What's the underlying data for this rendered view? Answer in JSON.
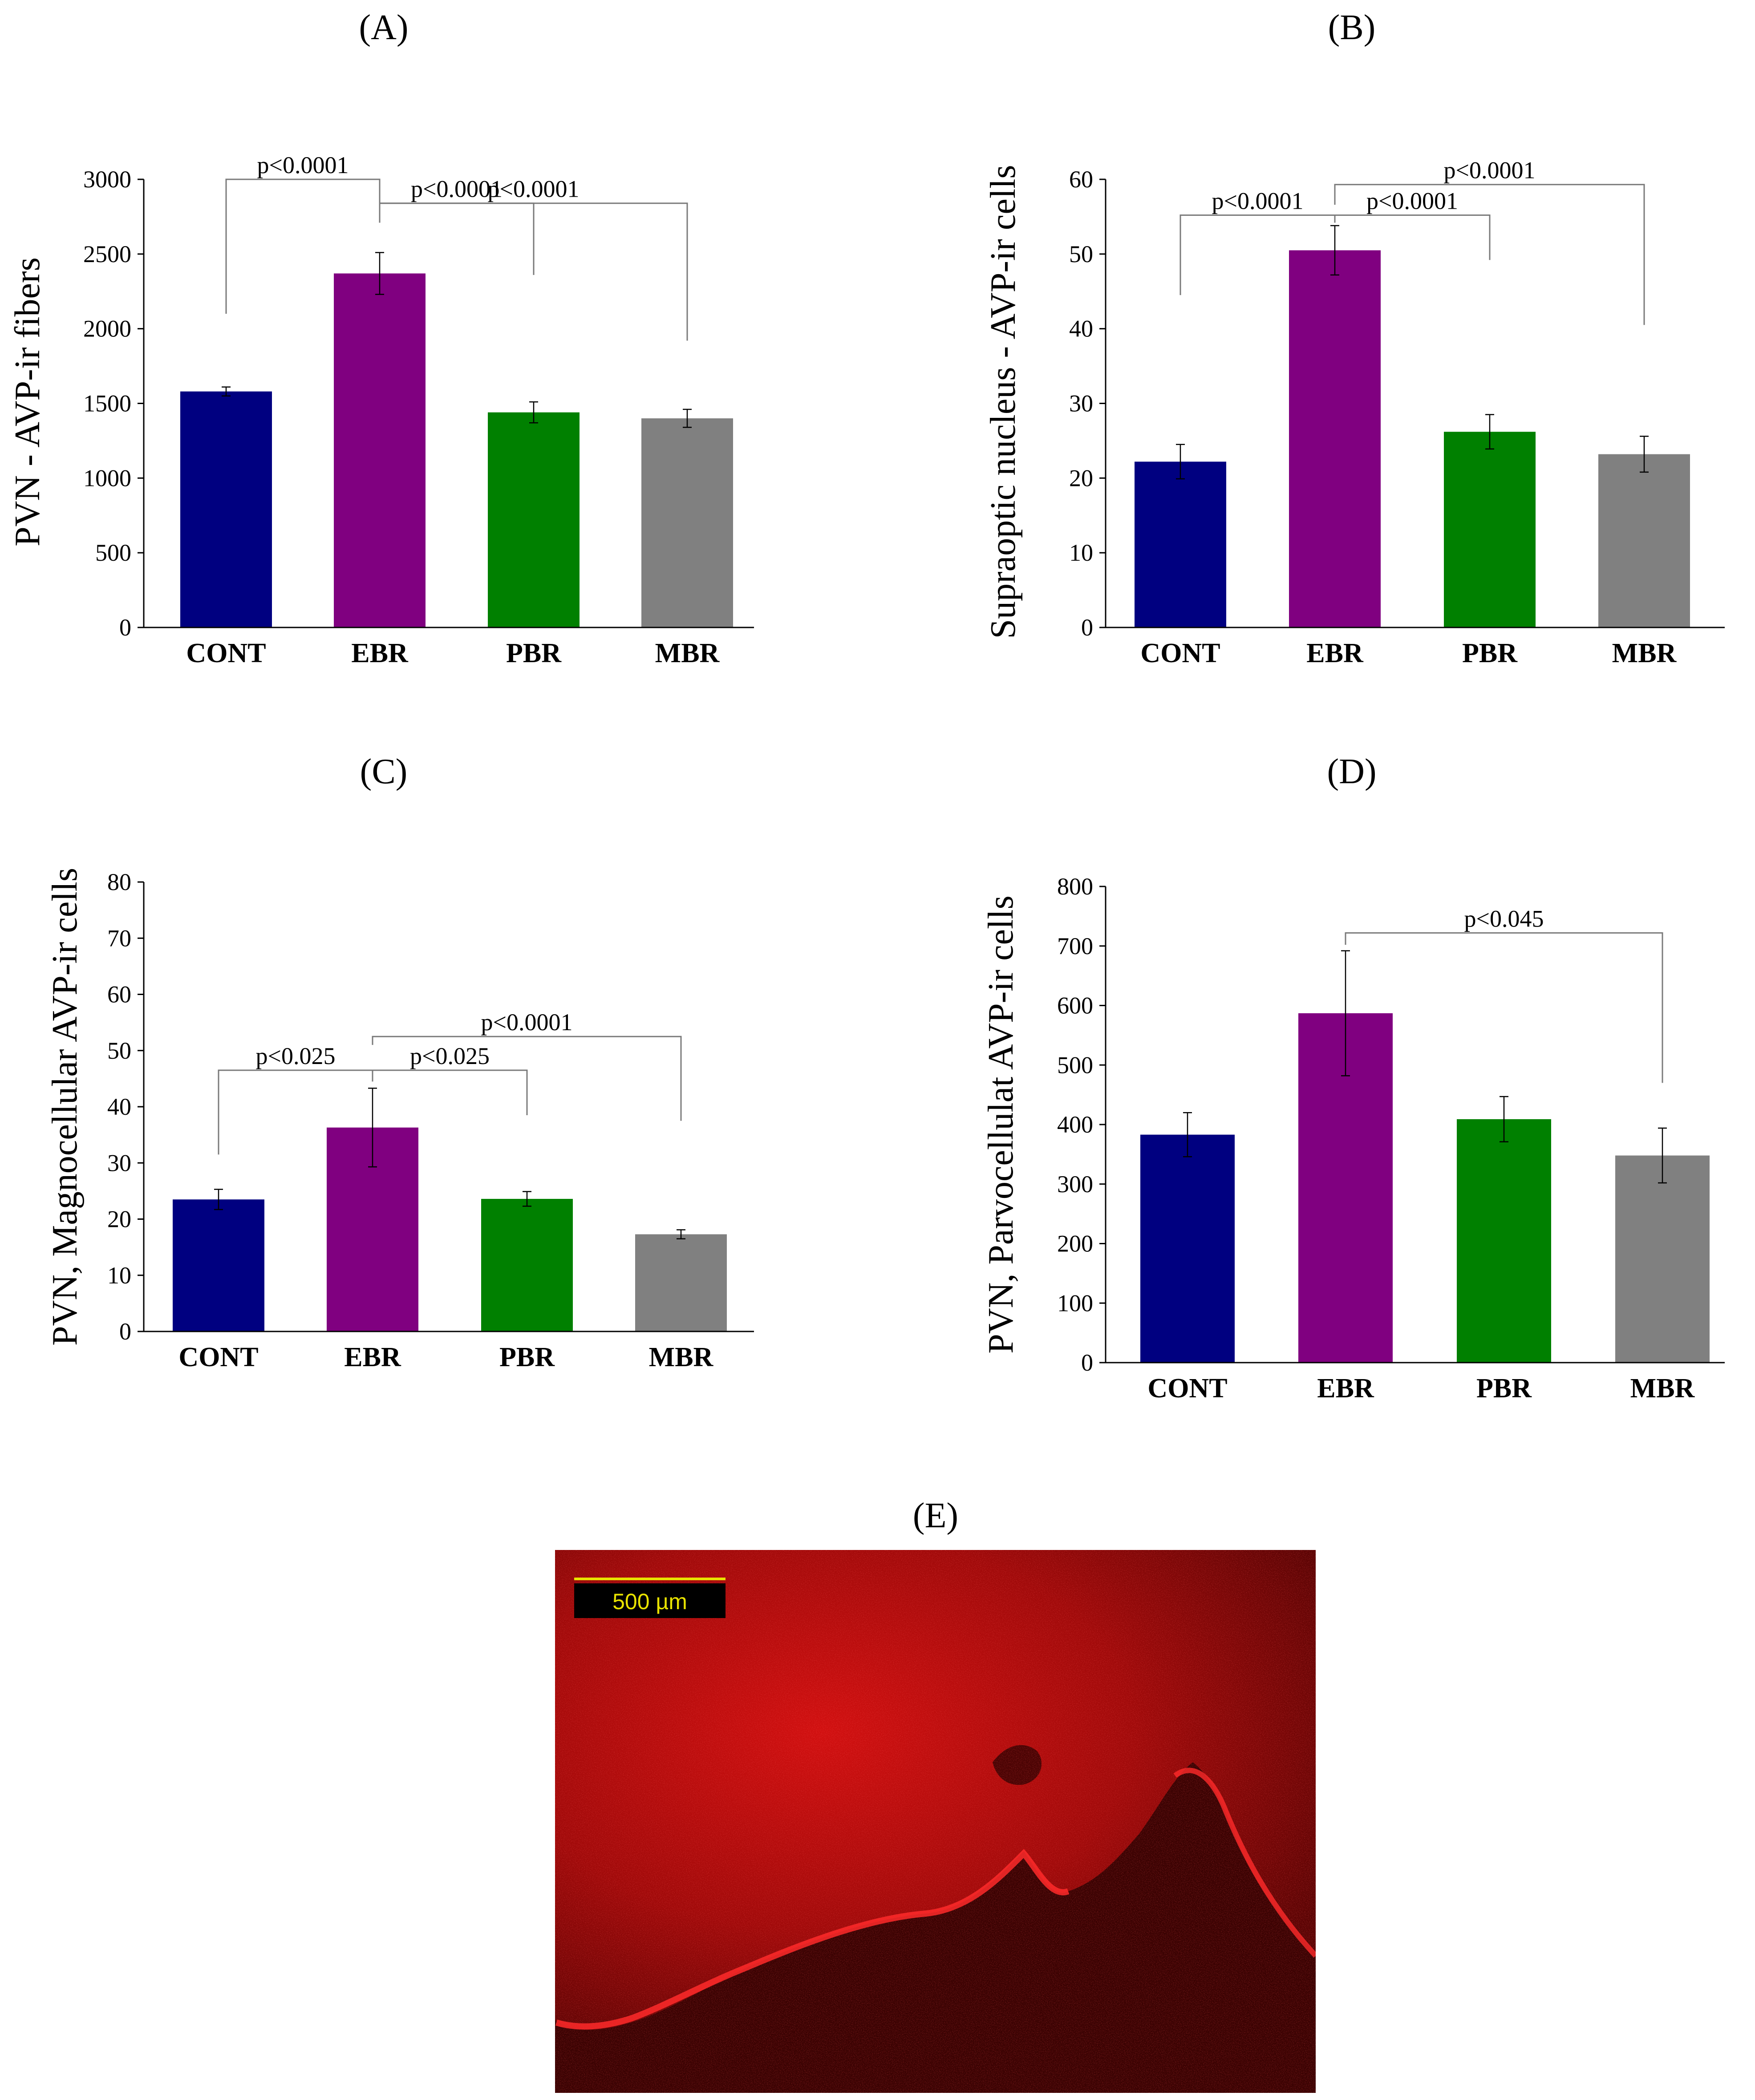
{
  "colors": {
    "CONT": "#000080",
    "EBR": "#800080",
    "PBR": "#008000",
    "MBR": "#808080",
    "scale_bar": "#e8e200"
  },
  "chart_data": [
    {
      "id": "A",
      "panel_label": "(A)",
      "type": "bar",
      "ylabel": "PVN -  AVP-ir fibers",
      "ylim": [
        0,
        3000
      ],
      "yticks": [
        0,
        500,
        1000,
        1500,
        2000,
        2500,
        3000
      ],
      "categories": [
        "CONT",
        "EBR",
        "PBR",
        "MBR"
      ],
      "values": [
        1580,
        2370,
        1440,
        1400
      ],
      "errors": [
        30,
        140,
        70,
        60
      ],
      "significance": [
        {
          "from": 0,
          "to": 1,
          "label": "p<0.0001",
          "level": 3000,
          "base_from": 2100,
          "base_to": 2710
        },
        {
          "from": 1,
          "to": 2,
          "label": "p<0.0001",
          "level": 2840,
          "base_from": 2710,
          "base_to": 2360
        },
        {
          "from": 1,
          "to": 3,
          "label": "p<0.0001",
          "level": 2840,
          "base_from": 2850,
          "base_to": 1920,
          "upper": 2850
        }
      ]
    },
    {
      "id": "B",
      "panel_label": "(B)",
      "type": "bar",
      "ylabel": "Supraoptic nucleus -  AVP-ir cells",
      "ylim": [
        0,
        60
      ],
      "yticks": [
        0,
        10,
        20,
        30,
        40,
        50,
        60
      ],
      "categories": [
        "CONT",
        "EBR",
        "PBR",
        "MBR"
      ],
      "values": [
        22.2,
        50.5,
        26.2,
        23.2
      ],
      "errors": [
        2.3,
        3.3,
        2.3,
        2.4
      ],
      "significance": [
        {
          "from": 0,
          "to": 1,
          "label": "p<0.0001",
          "level": 55.2,
          "base_from": 44.5,
          "base_to": 54.2
        },
        {
          "from": 1,
          "to": 2,
          "label": "p<0.0001",
          "level": 55.2,
          "base_from": 54.2,
          "base_to": 49.2
        },
        {
          "from": 1,
          "to": 3,
          "label": "p<0.0001",
          "level": 59.3,
          "base_from": 56.6,
          "base_to": 40.5,
          "upper": 59.3
        }
      ]
    },
    {
      "id": "C",
      "panel_label": "(C)",
      "type": "bar",
      "ylabel": "PVN, Magnocellular AVP-ir cells",
      "ylim": [
        0,
        80
      ],
      "yticks": [
        0,
        10,
        20,
        30,
        40,
        50,
        60,
        70,
        80
      ],
      "categories": [
        "CONT",
        "EBR",
        "PBR",
        "MBR"
      ],
      "values": [
        23.5,
        36.3,
        23.6,
        17.3
      ],
      "errors": [
        1.8,
        7.0,
        1.3,
        0.8
      ],
      "significance": [
        {
          "from": 0,
          "to": 1,
          "label": "p<0.025",
          "level": 46.5,
          "base_from": 31.5,
          "base_to": 44.5
        },
        {
          "from": 1,
          "to": 2,
          "label": "p<0.025",
          "level": 46.5,
          "base_from": 44.5,
          "base_to": 38.5
        },
        {
          "from": 1,
          "to": 3,
          "label": "p<0.0001",
          "level": 52.5,
          "base_from": 51.0,
          "base_to": 37.5,
          "upper": 52.5
        }
      ]
    },
    {
      "id": "D",
      "panel_label": "(D)",
      "type": "bar",
      "ylabel": "PVN, Parvocellulat AVP-ir cells",
      "ylim": [
        0,
        800
      ],
      "yticks": [
        0,
        100,
        200,
        300,
        400,
        500,
        600,
        700,
        800
      ],
      "categories": [
        "CONT",
        "EBR",
        "PBR",
        "MBR"
      ],
      "values": [
        383,
        587,
        409,
        348
      ],
      "errors": [
        37,
        105,
        38,
        46
      ],
      "significance": [
        {
          "from": 1,
          "to": 3,
          "label": "p<0.045",
          "level": 722,
          "base_from": 702,
          "base_to": 470,
          "upper": 722
        }
      ]
    }
  ],
  "micrograph": {
    "panel_label": "(E)",
    "scale_bar_label": "500 µm"
  }
}
